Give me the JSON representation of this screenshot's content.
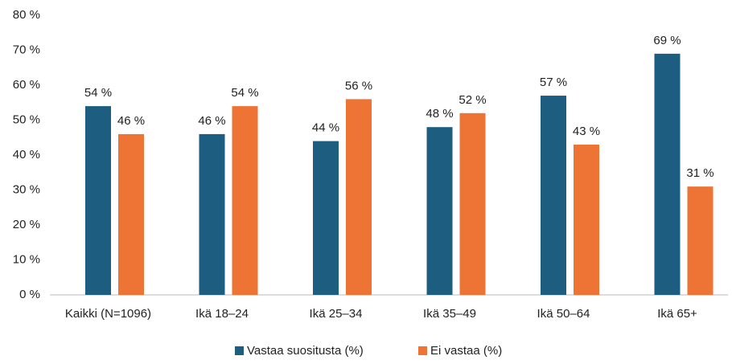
{
  "chart_data": {
    "type": "bar",
    "categories": [
      "Kaikki (N=1096)",
      "Ikä 18–24",
      "Ikä 25–34",
      "Ikä 35–49",
      "Ikä 50–64",
      "Ikä 65+"
    ],
    "series": [
      {
        "name": "Vastaa suositusta (%)",
        "color": "#1c5d80",
        "values": [
          54,
          46,
          44,
          48,
          57,
          69
        ],
        "value_labels": [
          "54 %",
          "46 %",
          "44 %",
          "48 %",
          "57 %",
          "69 %"
        ]
      },
      {
        "name": "Ei vastaa (%)",
        "color": "#ed7435",
        "values": [
          46,
          54,
          56,
          52,
          43,
          31
        ],
        "value_labels": [
          "46 %",
          "54 %",
          "56 %",
          "52 %",
          "43 %",
          "31 %"
        ]
      }
    ],
    "ylim": [
      0,
      80
    ],
    "yticks": [
      {
        "value": 0,
        "label": "0 %"
      },
      {
        "value": 10,
        "label": "10 %"
      },
      {
        "value": 20,
        "label": "20 %"
      },
      {
        "value": 30,
        "label": "30 %"
      },
      {
        "value": 40,
        "label": "40 %"
      },
      {
        "value": 50,
        "label": "50 %"
      },
      {
        "value": 60,
        "label": "60 %"
      },
      {
        "value": 70,
        "label": "70 %"
      },
      {
        "value": 80,
        "label": "80 %"
      }
    ],
    "grid": false,
    "legend": "bottom"
  }
}
